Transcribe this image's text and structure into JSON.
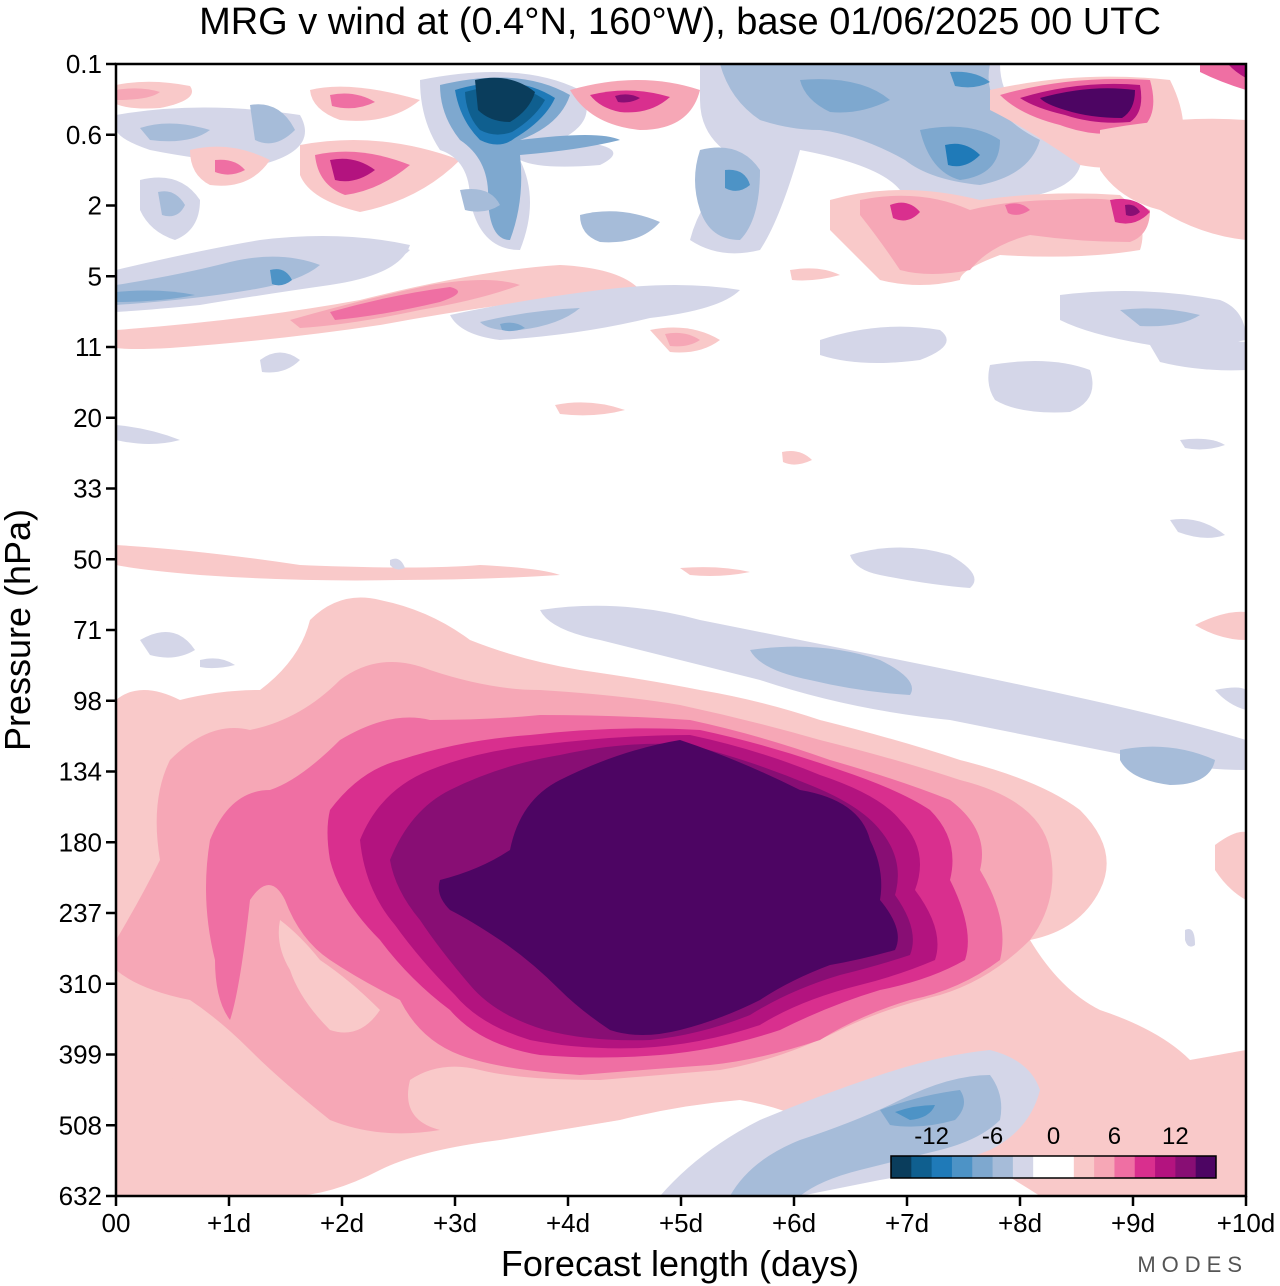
{
  "chart_data": {
    "type": "heatmap",
    "title": "MRG v wind at (0.4°N, 160°W),  base 01/06/2025  00 UTC",
    "xlabel": "Forecast length (days)",
    "ylabel": "Pressure (hPa)",
    "x_ticks": [
      "00",
      "+1d",
      "+2d",
      "+3d",
      "+4d",
      "+5d",
      "+6d",
      "+7d",
      "+8d",
      "+9d",
      "+10d"
    ],
    "xlim": [
      0,
      10
    ],
    "y_ticks": [
      "0.1",
      "0.6",
      "2",
      "5",
      "11",
      "20",
      "33",
      "50",
      "71",
      "98",
      "134",
      "180",
      "237",
      "310",
      "399",
      "508",
      "632"
    ],
    "ylim": [
      632,
      0.1
    ],
    "colorbar": {
      "tick_labels": [
        "-12",
        "-6",
        "0",
        "6",
        "12"
      ],
      "levels": [
        -14,
        -12,
        -10,
        -8,
        -6,
        -4,
        -2,
        0,
        2,
        4,
        6,
        8,
        10,
        12,
        14
      ],
      "colors": [
        "#0a3d5c",
        "#0f5f8f",
        "#1f7ab8",
        "#4d93c6",
        "#7ea8cf",
        "#a6bcd9",
        "#d4d6e8",
        "#ffffff",
        "#ffffff",
        "#f9c9c9",
        "#f6a7b6",
        "#ef6fa3",
        "#d92f8e",
        "#b3137f",
        "#880e74",
        "#4d0563"
      ]
    },
    "features": [
      {
        "label": "main positive maximum",
        "x_days": 5.0,
        "pressure_hPa": 237,
        "value": 16
      },
      {
        "label": "upper-level negative maximum",
        "x_days": 3.5,
        "pressure_hPa": 0.3,
        "value": -16
      },
      {
        "label": "upper-level positive maximum",
        "x_days": 8.9,
        "pressure_hPa": 0.3,
        "value": 16
      },
      {
        "label": "lower-level negative region",
        "x_days": 6.5,
        "pressure_hPa": 560,
        "value": -6
      }
    ],
    "grid": false,
    "legend": "bottom-right colorbar"
  },
  "brand": "MODES"
}
